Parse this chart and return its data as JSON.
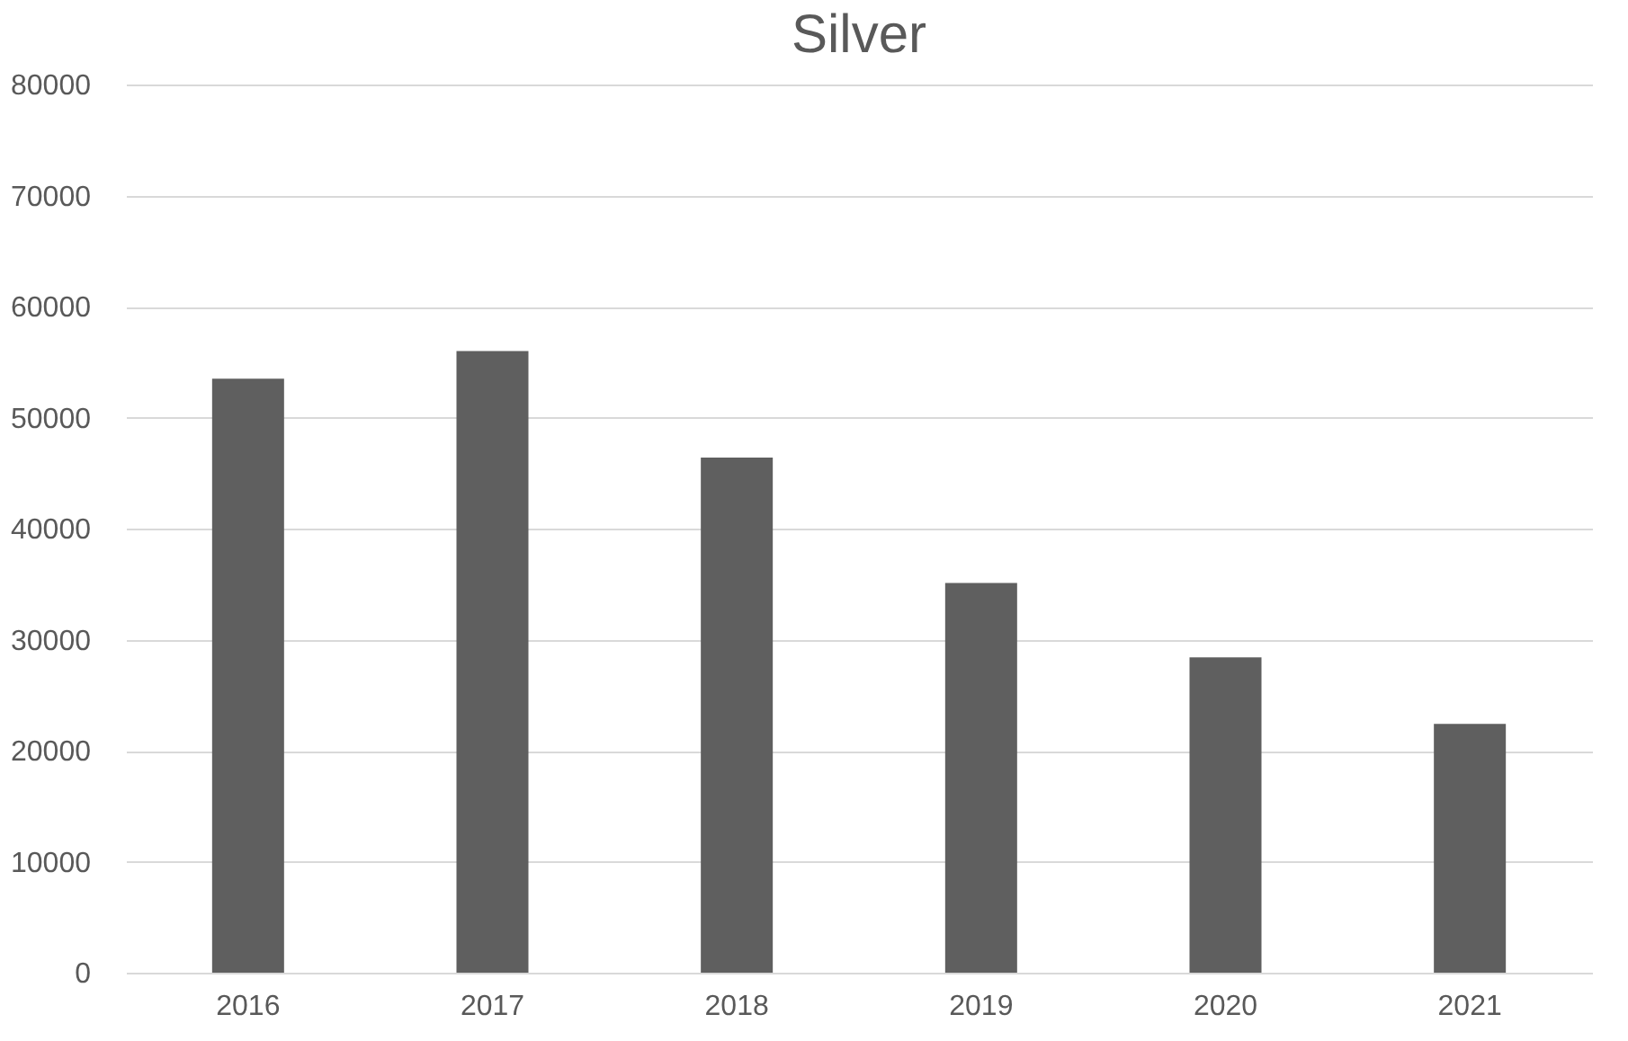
{
  "chart_data": {
    "type": "bar",
    "title": "Silver",
    "categories": [
      "2016",
      "2017",
      "2018",
      "2019",
      "2020",
      "2021"
    ],
    "values": [
      53500,
      56000,
      46400,
      35100,
      28400,
      22400
    ],
    "color": "#5f5f5f",
    "ylim": [
      0,
      80000
    ],
    "yticks": [
      0,
      10000,
      20000,
      30000,
      40000,
      50000,
      60000,
      70000,
      80000
    ],
    "grid": "y"
  }
}
